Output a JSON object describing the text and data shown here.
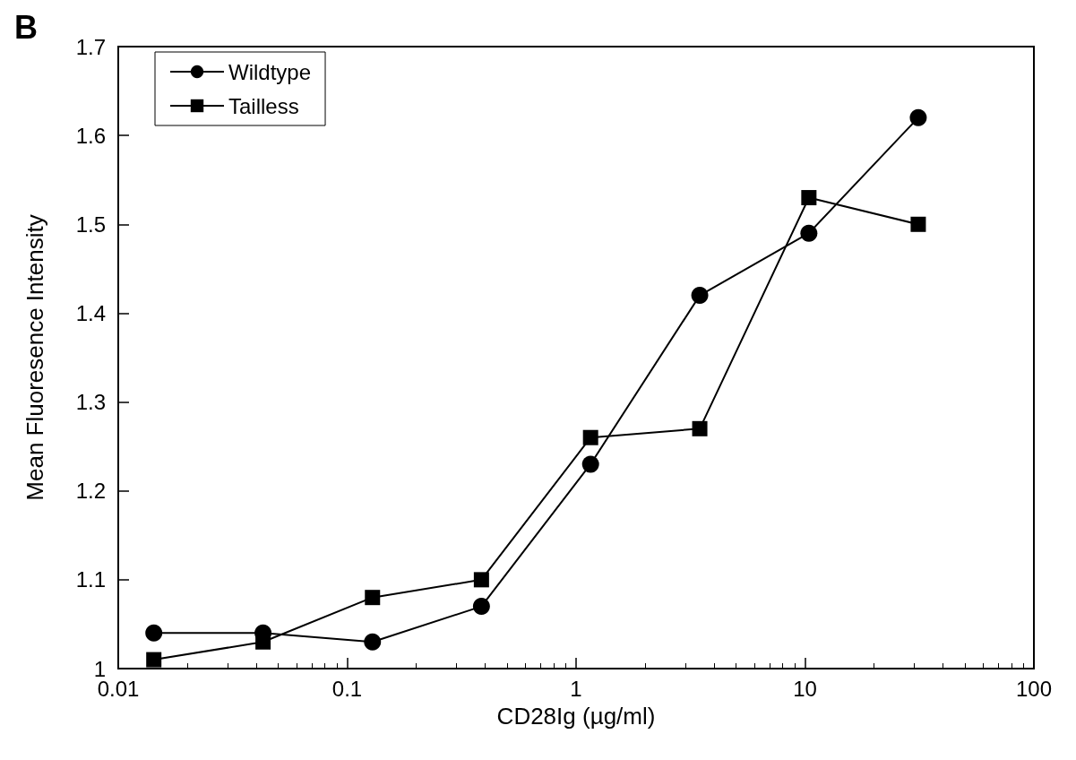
{
  "chart_data": {
    "type": "line",
    "xlabel": "CD28Ig (µg/ml)",
    "ylabel": "Mean Fluoresence Intensity",
    "annotations": [
      "B"
    ],
    "log": "x",
    "x": [
      0.0143,
      0.0429,
      0.129,
      0.386,
      1.157,
      3.47,
      10.4,
      31.25
    ],
    "xlim": [
      0.01,
      100
    ],
    "xticks": [
      0.01,
      0.1,
      1,
      10,
      100
    ],
    "ylim": [
      1,
      1.7
    ],
    "yticks": [
      1,
      1.1,
      1.2,
      1.3,
      1.4,
      1.5,
      1.6,
      1.7
    ],
    "grid": false,
    "legend": "top left",
    "line_style": "solid",
    "series": [
      {
        "name": "Wildtype",
        "color": "#000000",
        "marker": "circle",
        "values": [
          1.04,
          1.04,
          1.03,
          1.07,
          1.23,
          1.42,
          1.49,
          1.62
        ]
      },
      {
        "name": "Tailless",
        "color": "#000000",
        "marker": "square",
        "values": [
          1.01,
          1.03,
          1.08,
          1.1,
          1.26,
          1.27,
          1.53,
          1.5
        ]
      }
    ]
  }
}
